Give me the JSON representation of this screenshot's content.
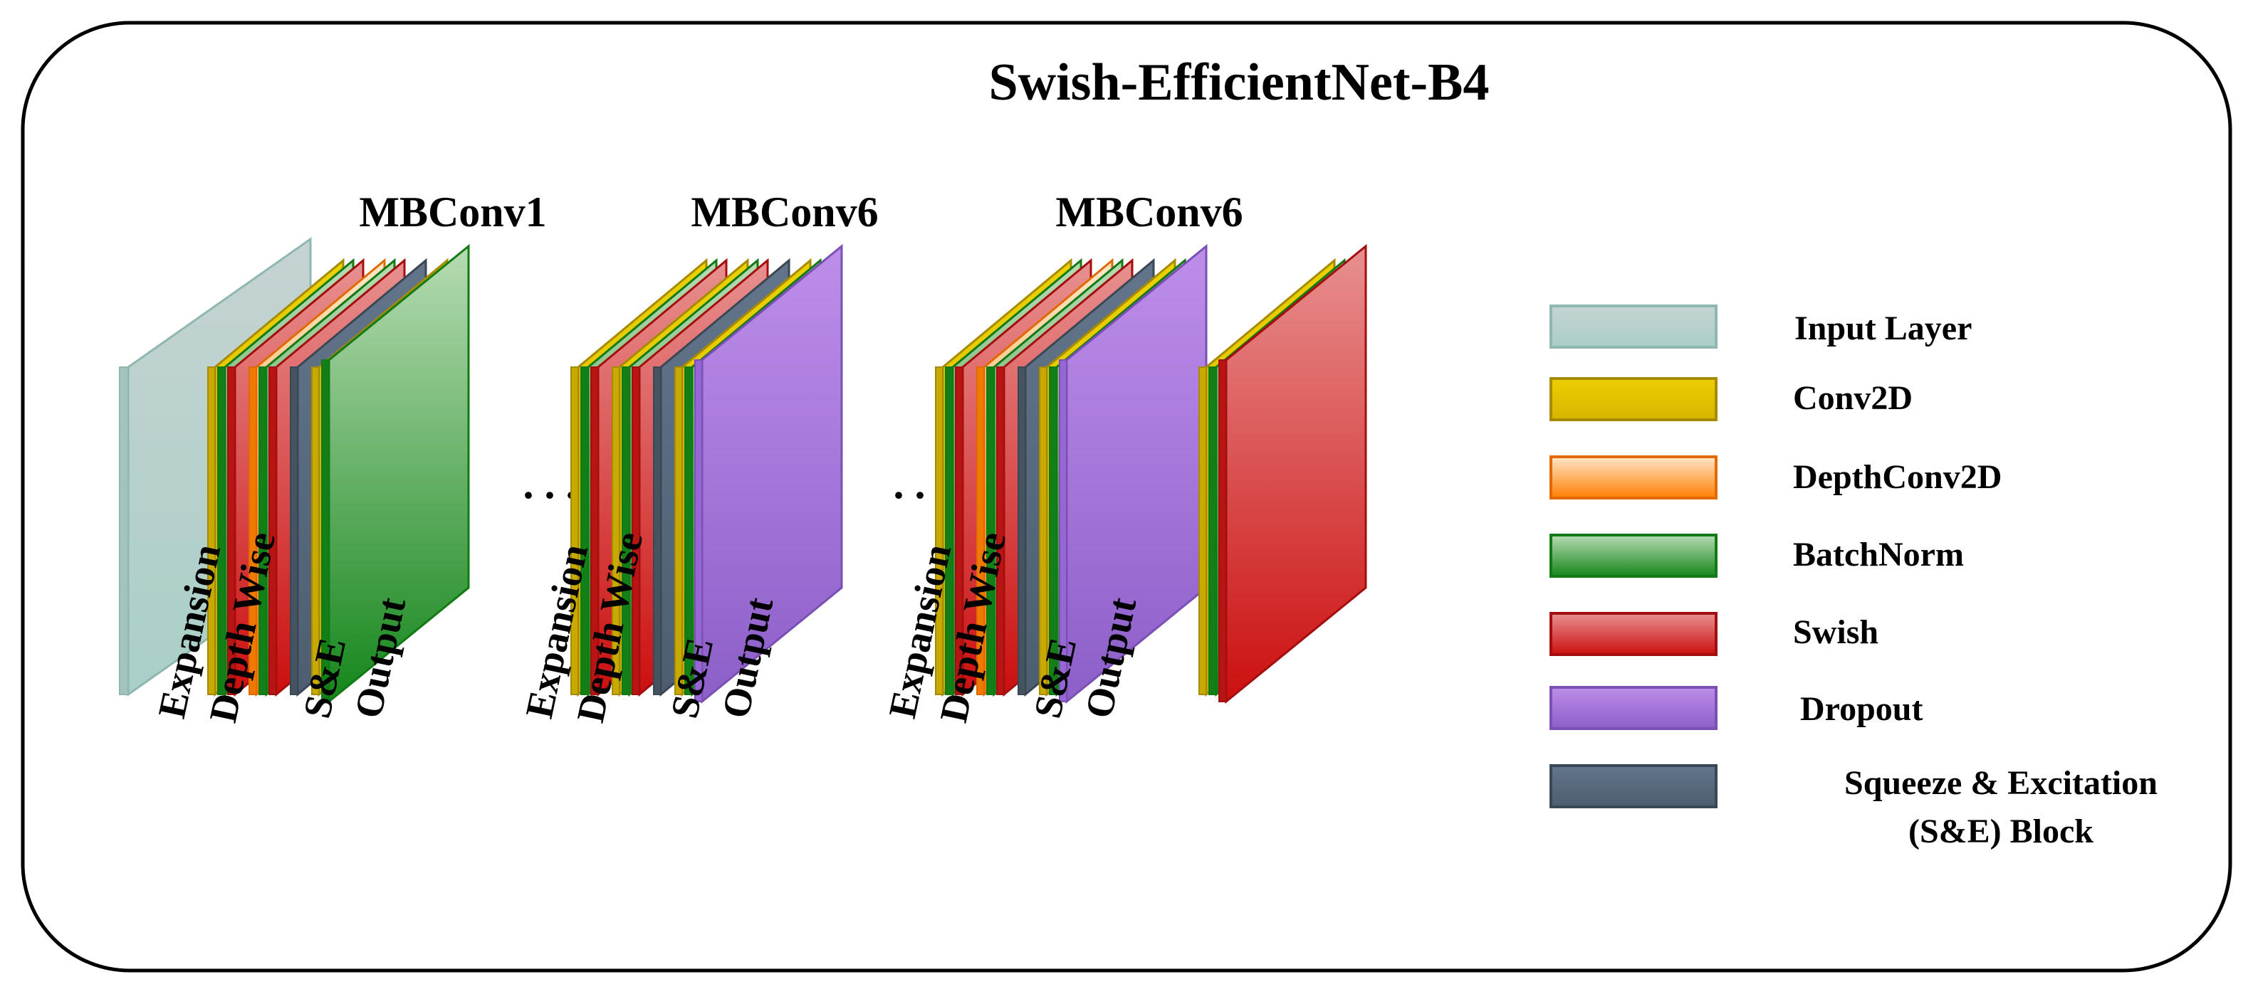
{
  "title": "Swish-EfficientNet-B4",
  "blocks": [
    {
      "label": "MBConv1",
      "stages": [
        "Expansion",
        "Depth Wise",
        "S&E",
        "Output"
      ]
    },
    {
      "label": "MBConv6",
      "stages": [
        "Expansion",
        "Depth Wise",
        "S&E",
        "Output"
      ]
    },
    {
      "label": "MBConv6",
      "stages": [
        "Expansion",
        "Depth Wise",
        "S&E",
        "Output"
      ]
    }
  ],
  "ellipsis": ". . .",
  "legend": [
    {
      "label": "Input Layer",
      "type": "input"
    },
    {
      "label": "Conv2D",
      "type": "conv"
    },
    {
      "label": "DepthConv2D",
      "type": "depth"
    },
    {
      "label": "BatchNorm",
      "type": "bn"
    },
    {
      "label": "Swish",
      "type": "swish"
    },
    {
      "label": "Dropout",
      "type": "dropout"
    },
    {
      "label": "Squeeze & Excitation",
      "label_line2": "(S&E) Block",
      "type": "se"
    }
  ],
  "colors": {
    "input": "#b5d3cf",
    "conv": "#e0c000",
    "depth": "#ff8a1a",
    "bn": "#1e9a22",
    "swish": "#dd1c1c",
    "dropout": "#a676df",
    "se": "#566778"
  }
}
